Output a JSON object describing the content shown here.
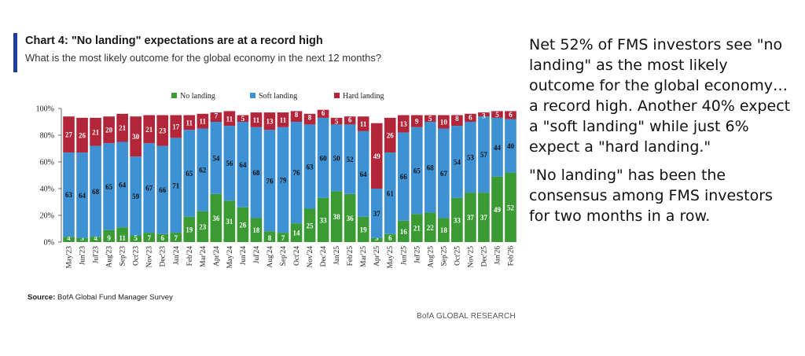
{
  "header": {
    "accent_color": "#1f3e99",
    "title": "Chart 4: \"No landing\" expectations are at a record high",
    "subtitle": "What is the most likely outcome for the global economy in the next 12 months?"
  },
  "chart_data": {
    "type": "bar",
    "stacked": true,
    "categories": [
      "May'23",
      "Jun'23",
      "Jul'23",
      "Aug'23",
      "Sep'23",
      "Oct'23",
      "Nov'23",
      "Dec'23",
      "Jan'24",
      "Feb'24",
      "Mar'24",
      "Apr'24",
      "May'24",
      "Jun'24",
      "Jul'24",
      "Aug'24",
      "Sep'24",
      "Oct'24",
      "Nov'24",
      "Dec'24",
      "Jan'25",
      "Feb'25",
      "Mar'25",
      "Apr'25",
      "May'25",
      "Jun'25",
      "Jul'25",
      "Aug'25",
      "Sep'25",
      "Oct'25",
      "Nov'25",
      "Dec'25",
      "Jan'26",
      "Feb'26"
    ],
    "series": [
      {
        "name": "No landing",
        "color": "#3a9b35",
        "values": [
          4,
          3,
          4,
          9,
          11,
          5,
          7,
          6,
          7,
          19,
          23,
          36,
          31,
          26,
          18,
          8,
          7,
          14,
          25,
          33,
          38,
          36,
          19,
          3,
          6,
          16,
          21,
          22,
          18,
          33,
          37,
          37,
          49,
          52
        ]
      },
      {
        "name": "Soft landing",
        "color": "#3e92d3",
        "values": [
          63,
          64,
          68,
          65,
          64,
          59,
          67,
          66,
          71,
          65,
          62,
          54,
          56,
          64,
          68,
          76,
          79,
          76,
          63,
          60,
          50,
          52,
          64,
          37,
          61,
          66,
          65,
          68,
          67,
          54,
          53,
          57,
          44,
          40
        ]
      },
      {
        "name": "Hard landing",
        "color": "#b3263a",
        "values": [
          27,
          26,
          21,
          20,
          21,
          30,
          21,
          23,
          17,
          11,
          11,
          7,
          11,
          5,
          11,
          13,
          11,
          8,
          8,
          6,
          5,
          6,
          11,
          49,
          26,
          13,
          9,
          5,
          10,
          8,
          6,
          3,
          5,
          6
        ]
      }
    ],
    "ylim": [
      0,
      100
    ],
    "yticks": [
      "0%",
      "20%",
      "40%",
      "60%",
      "80%",
      "100%"
    ],
    "legend_position": "top-center",
    "grid": false
  },
  "source": {
    "label": "Source:",
    "text": " BofA Global Fund Manager Survey"
  },
  "brand": "BofA GLOBAL RESEARCH",
  "commentary": {
    "p1": "Net 52% of FMS investors see \"no landing\" as the most likely outcome for the global economy…a record high. Another 40% expect a \"soft landing\" while just 6% expect a \"hard landing.\"",
    "p2": "\"No landing\" has been the consensus among FMS investors for two months in a row."
  }
}
